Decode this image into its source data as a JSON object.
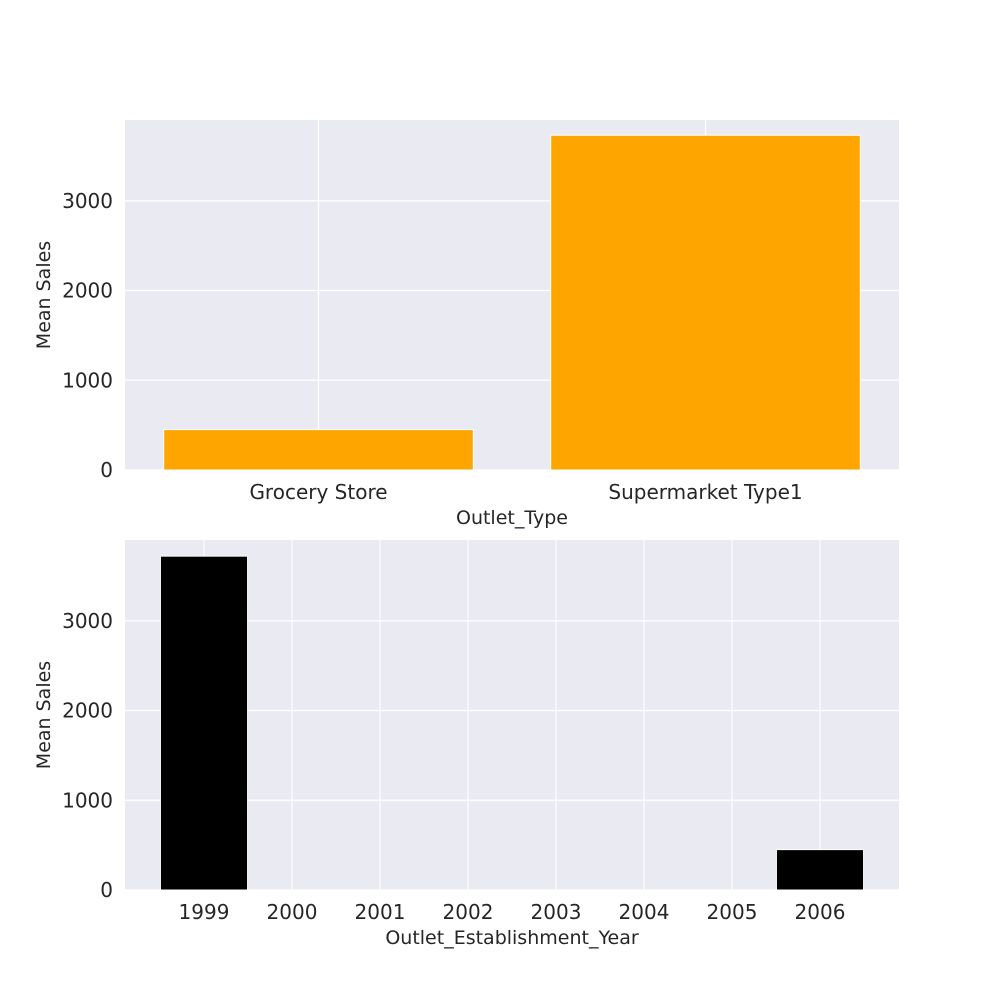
{
  "chart_data": [
    {
      "type": "bar",
      "categories": [
        "Grocery Store",
        "Supermarket Type1"
      ],
      "values": [
        450,
        3730
      ],
      "xlabel": "Outlet_Type",
      "ylabel": "Mean Sales",
      "ylim": [
        0,
        3900
      ],
      "yticks": [
        0,
        1000,
        2000,
        3000
      ],
      "color": "#ffa500",
      "grid": true
    },
    {
      "type": "bar",
      "categories": [
        "1999",
        "2000",
        "2001",
        "2002",
        "2003",
        "2004",
        "2005",
        "2006"
      ],
      "values": [
        3720,
        0,
        0,
        0,
        0,
        0,
        0,
        450
      ],
      "xlabel": "Outlet_Establishment_Year",
      "ylabel": "Mean Sales",
      "ylim": [
        0,
        3900
      ],
      "yticks": [
        0,
        1000,
        2000,
        3000
      ],
      "color": "#000000",
      "grid": true
    }
  ]
}
